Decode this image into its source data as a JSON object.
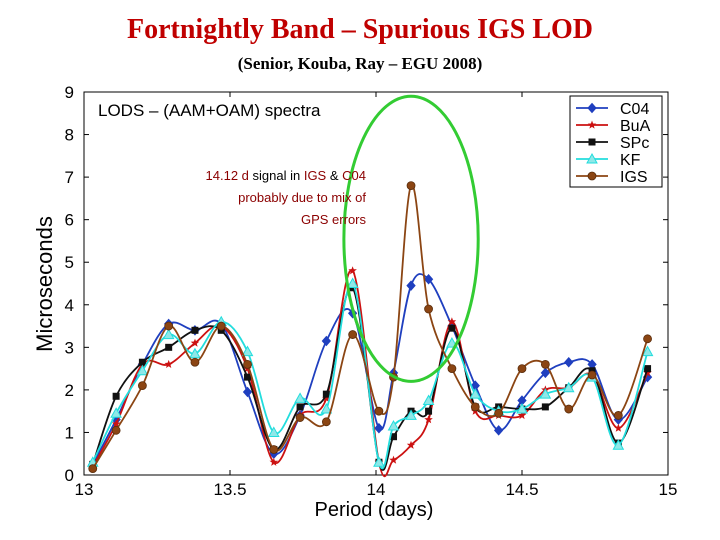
{
  "slide": {
    "title": "Fortnightly Band – Spurious IGS LOD",
    "subtitle": "(Senior, Kouba, Ray – EGU 2008)"
  },
  "chart_data": {
    "type": "line",
    "title": "LODS – (AAM+OAM) spectra",
    "xlabel": "Period (days)",
    "ylabel": "Microseconds",
    "xlim": [
      13,
      15
    ],
    "ylim": [
      0,
      9
    ],
    "xticks": [
      "13",
      "13.5",
      "14",
      "14.5",
      "15"
    ],
    "yticks": [
      "0",
      "1",
      "2",
      "3",
      "4",
      "5",
      "6",
      "7",
      "8",
      "9"
    ],
    "grid": false,
    "legend_position": "top-right",
    "annotation": {
      "line1_pre": "14.12 d",
      "line1_mid1": " signal in ",
      "line1_igs": "IGS",
      "line1_mid2": " & ",
      "line1_c04": "C04",
      "line2": "probably due to mix of",
      "line3": "GPS errors"
    },
    "highlight_ellipse": {
      "cx": 14.12,
      "cy": 5.55,
      "rx": 0.23,
      "ry": 3.35,
      "color": "#33cc33"
    },
    "series": [
      {
        "name": "C04",
        "color": "#1f3fbf",
        "marker": "diamond",
        "x": [
          13.03,
          13.11,
          13.2,
          13.29,
          13.38,
          13.47,
          13.56,
          13.65,
          13.74,
          13.83,
          13.92,
          14.01,
          14.06,
          14.12,
          14.18,
          14.26,
          14.34,
          14.42,
          14.5,
          14.58,
          14.66,
          14.74,
          14.83,
          14.93
        ],
        "y": [
          0.25,
          1.3,
          2.6,
          3.55,
          3.4,
          3.55,
          1.95,
          0.5,
          1.4,
          3.15,
          3.8,
          1.1,
          2.4,
          4.45,
          4.6,
          3.5,
          2.1,
          1.05,
          1.75,
          2.4,
          2.65,
          2.6,
          1.3,
          2.3
        ]
      },
      {
        "name": "BuA",
        "color": "#cc1111",
        "marker": "star",
        "x": [
          13.03,
          13.11,
          13.2,
          13.29,
          13.38,
          13.47,
          13.56,
          13.65,
          13.74,
          13.83,
          13.92,
          14.01,
          14.06,
          14.12,
          14.18,
          14.26,
          14.34,
          14.42,
          14.5,
          14.58,
          14.66,
          14.74,
          14.83,
          14.93
        ],
        "y": [
          0.2,
          1.2,
          2.6,
          2.6,
          3.1,
          3.5,
          2.5,
          0.3,
          1.4,
          1.8,
          4.8,
          0.3,
          0.35,
          0.7,
          1.3,
          3.6,
          1.5,
          1.4,
          1.4,
          2.0,
          2.05,
          2.35,
          1.1,
          2.4
        ]
      },
      {
        "name": "SPc",
        "color": "#111111",
        "marker": "square",
        "x": [
          13.03,
          13.11,
          13.2,
          13.29,
          13.38,
          13.47,
          13.56,
          13.65,
          13.74,
          13.83,
          13.92,
          14.01,
          14.06,
          14.12,
          14.18,
          14.26,
          14.34,
          14.42,
          14.5,
          14.58,
          14.66,
          14.74,
          14.83,
          14.93
        ],
        "y": [
          0.25,
          1.85,
          2.65,
          3.0,
          3.4,
          3.4,
          2.3,
          0.6,
          1.6,
          1.9,
          4.4,
          0.3,
          0.9,
          1.5,
          1.5,
          3.45,
          1.6,
          1.6,
          1.55,
          1.6,
          2.05,
          2.45,
          0.75,
          2.5
        ]
      },
      {
        "name": "KF",
        "color": "#22dddd",
        "marker": "triangle",
        "x": [
          13.03,
          13.11,
          13.2,
          13.29,
          13.38,
          13.47,
          13.56,
          13.65,
          13.74,
          13.83,
          13.92,
          14.01,
          14.06,
          14.12,
          14.18,
          14.26,
          14.34,
          14.42,
          14.5,
          14.58,
          14.66,
          14.74,
          14.83,
          14.93
        ],
        "y": [
          0.3,
          1.45,
          2.45,
          3.3,
          2.85,
          3.6,
          2.9,
          1.0,
          1.8,
          1.55,
          4.5,
          0.3,
          1.15,
          1.4,
          1.75,
          3.1,
          1.9,
          1.5,
          1.55,
          1.9,
          2.05,
          2.3,
          0.7,
          2.9
        ]
      },
      {
        "name": "IGS",
        "color": "#8b4513",
        "marker": "circle",
        "x": [
          13.03,
          13.11,
          13.2,
          13.29,
          13.38,
          13.47,
          13.56,
          13.65,
          13.74,
          13.83,
          13.92,
          14.01,
          14.06,
          14.12,
          14.18,
          14.26,
          14.34,
          14.42,
          14.5,
          14.58,
          14.66,
          14.74,
          14.83,
          14.93
        ],
        "y": [
          0.15,
          1.05,
          2.1,
          3.5,
          2.65,
          3.5,
          2.6,
          0.6,
          1.35,
          1.25,
          3.3,
          1.5,
          2.3,
          6.8,
          3.9,
          2.5,
          1.6,
          1.45,
          2.5,
          2.6,
          1.55,
          2.35,
          1.4,
          3.2
        ]
      }
    ]
  }
}
